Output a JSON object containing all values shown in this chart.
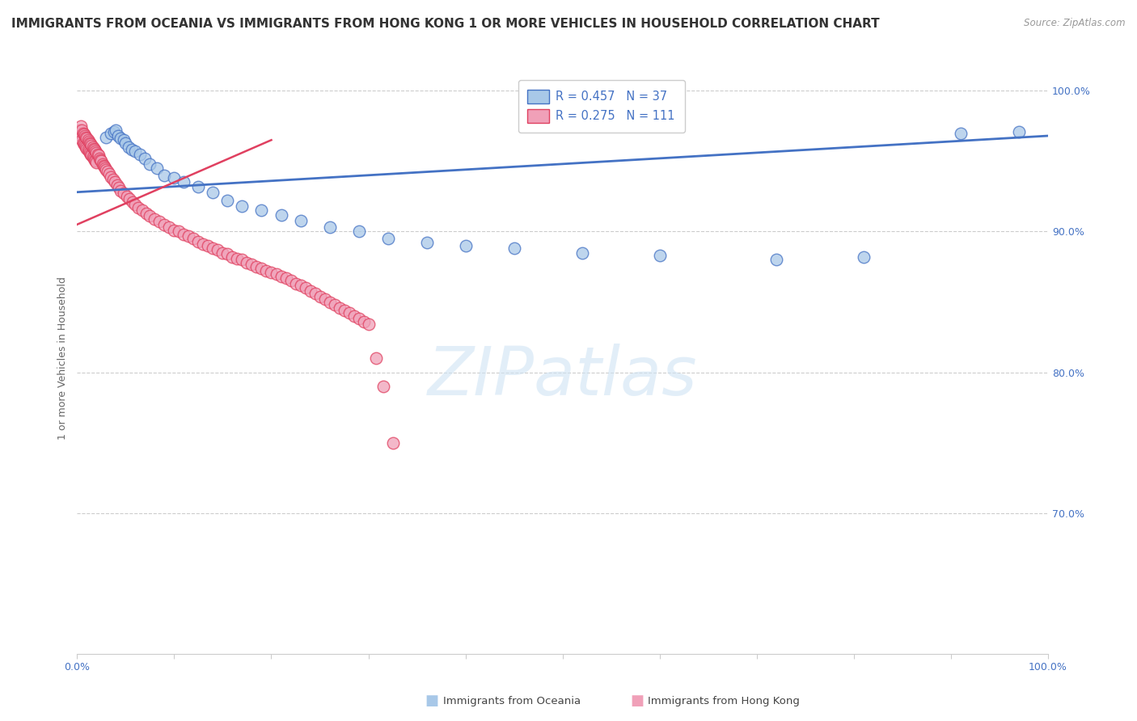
{
  "title": "IMMIGRANTS FROM OCEANIA VS IMMIGRANTS FROM HONG KONG 1 OR MORE VEHICLES IN HOUSEHOLD CORRELATION CHART",
  "source": "Source: ZipAtlas.com",
  "ylabel": "1 or more Vehicles in Household",
  "legend_blue_label": "Immigrants from Oceania",
  "legend_pink_label": "Immigrants from Hong Kong",
  "legend_R_blue": "R = 0.457",
  "legend_N_blue": "N = 37",
  "legend_R_pink": "R = 0.275",
  "legend_N_pink": "N = 111",
  "blue_color": "#A8C8E8",
  "pink_color": "#F0A0B8",
  "blue_line_color": "#4472C4",
  "pink_line_color": "#E04060",
  "background_color": "#FFFFFF",
  "title_fontsize": 11,
  "axis_label_fontsize": 9,
  "tick_fontsize": 9,
  "watermark_text": "ZIPatlas",
  "blue_scatter_x": [
    0.03,
    0.035,
    0.038,
    0.04,
    0.042,
    0.045,
    0.048,
    0.05,
    0.053,
    0.056,
    0.06,
    0.065,
    0.07,
    0.075,
    0.082,
    0.09,
    0.1,
    0.11,
    0.125,
    0.14,
    0.155,
    0.17,
    0.19,
    0.21,
    0.23,
    0.26,
    0.29,
    0.32,
    0.36,
    0.4,
    0.45,
    0.52,
    0.6,
    0.72,
    0.81,
    0.91,
    0.97
  ],
  "blue_scatter_y": [
    0.967,
    0.97,
    0.971,
    0.972,
    0.968,
    0.966,
    0.965,
    0.963,
    0.96,
    0.958,
    0.957,
    0.955,
    0.952,
    0.948,
    0.945,
    0.94,
    0.938,
    0.935,
    0.932,
    0.928,
    0.922,
    0.918,
    0.915,
    0.912,
    0.908,
    0.903,
    0.9,
    0.895,
    0.892,
    0.89,
    0.888,
    0.885,
    0.883,
    0.88,
    0.882,
    0.97,
    0.971
  ],
  "pink_scatter_x": [
    0.002,
    0.003,
    0.004,
    0.004,
    0.005,
    0.005,
    0.006,
    0.006,
    0.007,
    0.007,
    0.008,
    0.008,
    0.009,
    0.009,
    0.01,
    0.01,
    0.011,
    0.011,
    0.012,
    0.012,
    0.013,
    0.013,
    0.014,
    0.014,
    0.015,
    0.015,
    0.016,
    0.016,
    0.017,
    0.017,
    0.018,
    0.018,
    0.019,
    0.019,
    0.02,
    0.02,
    0.021,
    0.022,
    0.023,
    0.024,
    0.025,
    0.026,
    0.027,
    0.028,
    0.029,
    0.03,
    0.031,
    0.033,
    0.035,
    0.037,
    0.039,
    0.041,
    0.043,
    0.045,
    0.048,
    0.051,
    0.054,
    0.057,
    0.06,
    0.063,
    0.067,
    0.071,
    0.075,
    0.08,
    0.085,
    0.09,
    0.095,
    0.1,
    0.105,
    0.11,
    0.115,
    0.12,
    0.125,
    0.13,
    0.135,
    0.14,
    0.145,
    0.15,
    0.155,
    0.16,
    0.165,
    0.17,
    0.175,
    0.18,
    0.185,
    0.19,
    0.195,
    0.2,
    0.205,
    0.21,
    0.215,
    0.22,
    0.225,
    0.23,
    0.235,
    0.24,
    0.245,
    0.25,
    0.255,
    0.26,
    0.265,
    0.27,
    0.275,
    0.28,
    0.285,
    0.29,
    0.295,
    0.3,
    0.308,
    0.315,
    0.325
  ],
  "pink_scatter_y": [
    0.972,
    0.97,
    0.975,
    0.968,
    0.972,
    0.965,
    0.97,
    0.963,
    0.969,
    0.962,
    0.968,
    0.961,
    0.967,
    0.96,
    0.966,
    0.959,
    0.965,
    0.958,
    0.964,
    0.957,
    0.963,
    0.956,
    0.962,
    0.955,
    0.961,
    0.954,
    0.96,
    0.953,
    0.959,
    0.952,
    0.958,
    0.951,
    0.957,
    0.95,
    0.956,
    0.949,
    0.955,
    0.954,
    0.952,
    0.951,
    0.95,
    0.948,
    0.947,
    0.946,
    0.945,
    0.944,
    0.943,
    0.941,
    0.939,
    0.937,
    0.935,
    0.933,
    0.931,
    0.929,
    0.927,
    0.925,
    0.923,
    0.921,
    0.919,
    0.917,
    0.915,
    0.913,
    0.911,
    0.909,
    0.907,
    0.905,
    0.903,
    0.901,
    0.9,
    0.898,
    0.897,
    0.895,
    0.893,
    0.891,
    0.89,
    0.888,
    0.887,
    0.885,
    0.884,
    0.882,
    0.881,
    0.88,
    0.878,
    0.877,
    0.875,
    0.874,
    0.872,
    0.871,
    0.87,
    0.868,
    0.867,
    0.865,
    0.863,
    0.862,
    0.86,
    0.858,
    0.856,
    0.854,
    0.852,
    0.85,
    0.848,
    0.846,
    0.844,
    0.842,
    0.84,
    0.838,
    0.836,
    0.834,
    0.81,
    0.79,
    0.75
  ],
  "xlim": [
    0.0,
    1.0
  ],
  "ylim": [
    0.6,
    1.02
  ],
  "ytick_vals": [
    1.0,
    0.9,
    0.8,
    0.7
  ],
  "ytick_labels": [
    "100.0%",
    "90.0%",
    "80.0%",
    "70.0%"
  ]
}
